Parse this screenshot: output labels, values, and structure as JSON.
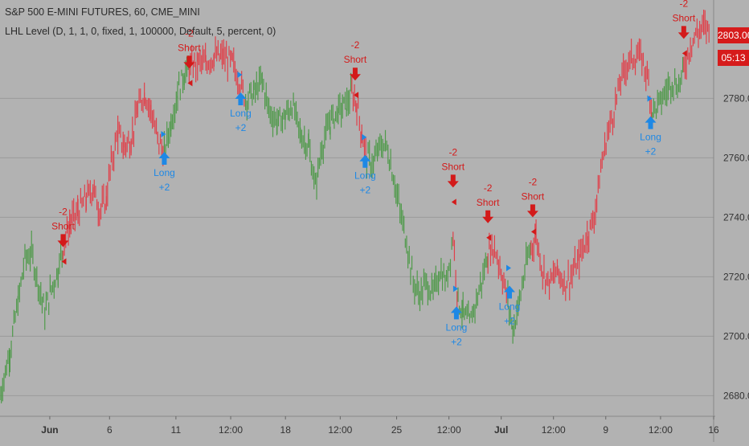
{
  "header": {
    "title": "S&P 500 E-MINI FUTURES, 60, CME_MINI",
    "indicator": "LHL Level (D, 1, 1, 0, fixed, 1, 100000, Default, 5, percent, 0)"
  },
  "price_tag": {
    "last_price": "2803.00",
    "countdown": "05:13",
    "color": "#d61b1b"
  },
  "colors": {
    "background": "#b2b2b2",
    "grid": "#9a9a9a",
    "up_bars": "#4f9a4a",
    "down_bars": "#e0404a",
    "long_signal": "#1e88e5",
    "short_signal": "#d31a1a",
    "axis_text": "#333333"
  },
  "chart_data": {
    "type": "line",
    "title": "S&P 500 E-MINI FUTURES, 60, CME_MINI",
    "xlabel": "",
    "ylabel": "",
    "y_ticks": [
      2680,
      2700,
      2720,
      2740,
      2760,
      2780
    ],
    "ylim": [
      2672,
      2812
    ],
    "x_tick_labels": [
      {
        "label": "Jun",
        "bar": 60,
        "bold": true
      },
      {
        "label": "6",
        "bar": 132
      },
      {
        "label": "11",
        "bar": 212
      },
      {
        "label": "12:00",
        "bar": 278
      },
      {
        "label": "18",
        "bar": 344
      },
      {
        "label": "12:00",
        "bar": 410
      },
      {
        "label": "25",
        "bar": 478
      },
      {
        "label": "12:00",
        "bar": 541
      },
      {
        "label": "Jul",
        "bar": 604,
        "bold": true
      },
      {
        "label": "12:00",
        "bar": 667
      },
      {
        "label": "9",
        "bar": 730
      },
      {
        "label": "12:00",
        "bar": 796
      },
      {
        "label": "16",
        "bar": 860
      }
    ],
    "bar_count": 860,
    "grid": true,
    "series": [
      {
        "bars": [
          [
            0,
            2680,
            "up"
          ],
          [
            12,
            2695,
            "up"
          ],
          [
            22,
            2712,
            "up"
          ],
          [
            30,
            2726,
            "up"
          ],
          [
            38,
            2728,
            "up"
          ],
          [
            46,
            2718,
            "up"
          ],
          [
            54,
            2708,
            "up"
          ],
          [
            62,
            2716,
            "up"
          ],
          [
            70,
            2722,
            "up"
          ],
          [
            76,
            2730,
            "down"
          ],
          [
            84,
            2738,
            "down"
          ],
          [
            94,
            2742,
            "down"
          ],
          [
            104,
            2746,
            "down"
          ],
          [
            112,
            2750,
            "down"
          ],
          [
            120,
            2742,
            "down"
          ],
          [
            128,
            2746,
            "down"
          ],
          [
            134,
            2758,
            "down"
          ],
          [
            142,
            2768,
            "down"
          ],
          [
            150,
            2764,
            "down"
          ],
          [
            158,
            2766,
            "down"
          ],
          [
            166,
            2776,
            "down"
          ],
          [
            174,
            2782,
            "down"
          ],
          [
            182,
            2776,
            "down"
          ],
          [
            190,
            2766,
            "down"
          ],
          [
            198,
            2762,
            "up"
          ],
          [
            206,
            2772,
            "up"
          ],
          [
            214,
            2782,
            "up"
          ],
          [
            222,
            2788,
            "up"
          ],
          [
            228,
            2790,
            "down"
          ],
          [
            238,
            2792,
            "down"
          ],
          [
            248,
            2792,
            "down"
          ],
          [
            258,
            2794,
            "down"
          ],
          [
            268,
            2794,
            "down"
          ],
          [
            280,
            2792,
            "down"
          ],
          [
            288,
            2786,
            "down"
          ],
          [
            296,
            2780,
            "up"
          ],
          [
            306,
            2782,
            "up"
          ],
          [
            316,
            2786,
            "up"
          ],
          [
            324,
            2776,
            "up"
          ],
          [
            334,
            2772,
            "up"
          ],
          [
            344,
            2774,
            "up"
          ],
          [
            352,
            2778,
            "up"
          ],
          [
            362,
            2768,
            "up"
          ],
          [
            372,
            2764,
            "up"
          ],
          [
            380,
            2750,
            "up"
          ],
          [
            388,
            2764,
            "up"
          ],
          [
            398,
            2772,
            "up"
          ],
          [
            408,
            2776,
            "up"
          ],
          [
            418,
            2778,
            "up"
          ],
          [
            424,
            2782,
            "down"
          ],
          [
            430,
            2778,
            "down"
          ],
          [
            436,
            2768,
            "down"
          ],
          [
            442,
            2760,
            "up"
          ],
          [
            450,
            2758,
            "up"
          ],
          [
            458,
            2764,
            "up"
          ],
          [
            466,
            2764,
            "up"
          ],
          [
            474,
            2754,
            "up"
          ],
          [
            482,
            2742,
            "up"
          ],
          [
            490,
            2732,
            "up"
          ],
          [
            498,
            2718,
            "up"
          ],
          [
            506,
            2714,
            "up"
          ],
          [
            514,
            2718,
            "up"
          ],
          [
            522,
            2714,
            "up"
          ],
          [
            530,
            2722,
            "up"
          ],
          [
            538,
            2718,
            "up"
          ],
          [
            546,
            2734,
            "down"
          ],
          [
            552,
            2712,
            "up"
          ],
          [
            558,
            2708,
            "up"
          ],
          [
            566,
            2704,
            "up"
          ],
          [
            574,
            2712,
            "up"
          ],
          [
            582,
            2720,
            "up"
          ],
          [
            588,
            2728,
            "down"
          ],
          [
            596,
            2730,
            "down"
          ],
          [
            604,
            2722,
            "down"
          ],
          [
            612,
            2712,
            "up"
          ],
          [
            618,
            2702,
            "up"
          ],
          [
            626,
            2712,
            "up"
          ],
          [
            634,
            2724,
            "up"
          ],
          [
            640,
            2730,
            "down"
          ],
          [
            646,
            2734,
            "down"
          ],
          [
            654,
            2722,
            "down"
          ],
          [
            662,
            2718,
            "down"
          ],
          [
            672,
            2722,
            "down"
          ],
          [
            680,
            2718,
            "down"
          ],
          [
            688,
            2720,
            "down"
          ],
          [
            698,
            2726,
            "down"
          ],
          [
            708,
            2734,
            "down"
          ],
          [
            716,
            2740,
            "down"
          ],
          [
            724,
            2756,
            "down"
          ],
          [
            732,
            2768,
            "down"
          ],
          [
            740,
            2776,
            "down"
          ],
          [
            748,
            2786,
            "down"
          ],
          [
            756,
            2792,
            "down"
          ],
          [
            764,
            2794,
            "down"
          ],
          [
            772,
            2794,
            "down"
          ],
          [
            780,
            2788,
            "down"
          ],
          [
            786,
            2776,
            "up"
          ],
          [
            794,
            2778,
            "up"
          ],
          [
            802,
            2782,
            "up"
          ],
          [
            810,
            2786,
            "up"
          ],
          [
            818,
            2784,
            "up"
          ],
          [
            824,
            2790,
            "down"
          ],
          [
            832,
            2798,
            "down"
          ],
          [
            840,
            2802,
            "down"
          ],
          [
            848,
            2804,
            "down"
          ],
          [
            856,
            2803,
            "down"
          ]
        ]
      }
    ],
    "signals": [
      {
        "kind": "short",
        "bar": 76,
        "price": 2730,
        "label": "Short",
        "qty": "-2"
      },
      {
        "kind": "long",
        "bar": 198,
        "price": 2762,
        "label": "Long",
        "qty": "+2"
      },
      {
        "kind": "short",
        "bar": 228,
        "price": 2790,
        "label": "Short",
        "qty": "-2"
      },
      {
        "kind": "long",
        "bar": 290,
        "price": 2782,
        "label": "Long",
        "qty": "+2"
      },
      {
        "kind": "short",
        "bar": 428,
        "price": 2786,
        "label": "Short",
        "qty": "-2"
      },
      {
        "kind": "long",
        "bar": 440,
        "price": 2761,
        "label": "Long",
        "qty": "+2"
      },
      {
        "kind": "short",
        "bar": 546,
        "price": 2750,
        "label": "Short",
        "qty": "-2"
      },
      {
        "kind": "long",
        "bar": 550,
        "price": 2710,
        "label": "Long",
        "qty": "+2"
      },
      {
        "kind": "short",
        "bar": 588,
        "price": 2738,
        "label": "Short",
        "qty": "-2"
      },
      {
        "kind": "long",
        "bar": 614,
        "price": 2717,
        "label": "Long",
        "qty": "+2"
      },
      {
        "kind": "short",
        "bar": 642,
        "price": 2740,
        "label": "Short",
        "qty": "-2"
      },
      {
        "kind": "long",
        "bar": 784,
        "price": 2774,
        "label": "Long",
        "qty": "+2"
      },
      {
        "kind": "short",
        "bar": 824,
        "price": 2800,
        "label": "Short",
        "qty": "-2"
      }
    ]
  }
}
